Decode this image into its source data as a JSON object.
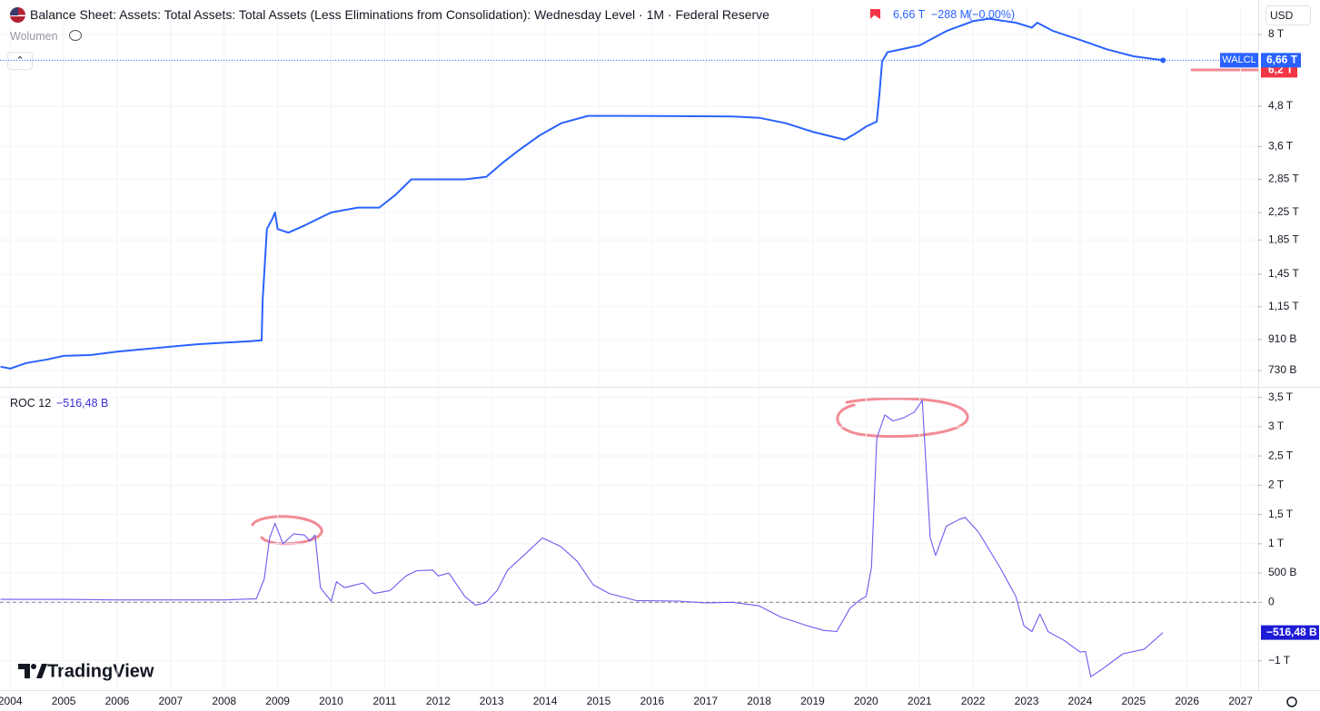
{
  "header": {
    "currency": "USD",
    "brand": "TradingView"
  },
  "chart_data": [
    {
      "type": "line",
      "title": "Balance Sheet: Assets: Total Assets: Total Assets (Less Eliminations from Consolidation): Wednesday Level · 1M · Federal Reserve",
      "volume_label": "Wolumen",
      "change": {
        "value": -0.288,
        "label": "−288 M"
      },
      "change_pct": {
        "value": 0,
        "label": "(−0,00%)"
      },
      "last_price": {
        "value": 6660,
        "label": "6,66 T"
      },
      "marker_price": {
        "value": 6200,
        "label": "6,2 T",
        "color": "#f23645"
      },
      "log_scale": true,
      "grid": true,
      "xlim": [
        2003.81,
        2027.33
      ],
      "ylim": [
        654,
        9713
      ],
      "yticks": [
        {
          "value": 8000,
          "label": "8 T"
        },
        {
          "value": 4800,
          "label": "4,8 T"
        },
        {
          "value": 3600,
          "label": "3,6 T"
        },
        {
          "value": 2850,
          "label": "2,85 T"
        },
        {
          "value": 2250,
          "label": "2,25 T"
        },
        {
          "value": 1850,
          "label": "1,85 T"
        },
        {
          "value": 1450,
          "label": "1,45 T"
        },
        {
          "value": 1150,
          "label": "1,15 T"
        },
        {
          "value": 910,
          "label": "910 B"
        },
        {
          "value": 730,
          "label": "730 B"
        }
      ],
      "x": [
        2003.82,
        2004.0,
        2004.3,
        2004.7,
        2005.0,
        2005.5,
        2006.0,
        2006.5,
        2007.0,
        2007.5,
        2008.0,
        2008.5,
        2008.7,
        2008.72,
        2008.8,
        2008.9,
        2008.95,
        2009.0,
        2009.2,
        2009.5,
        2009.75,
        2010.0,
        2010.5,
        2010.9,
        2011.2,
        2011.5,
        2011.9,
        2012.5,
        2012.9,
        2013.2,
        2013.5,
        2013.9,
        2014.3,
        2014.8,
        2015.5,
        2016.5,
        2017.5,
        2018.0,
        2018.5,
        2019.0,
        2019.6,
        2019.8,
        2020.0,
        2020.2,
        2020.25,
        2020.3,
        2020.4,
        2021.0,
        2021.5,
        2022.0,
        2022.3,
        2022.8,
        2023.1,
        2023.2,
        2023.5,
        2024.0,
        2024.5,
        2025.0,
        2025.55
      ],
      "series": [
        {
          "name": "WALCL",
          "color": "#2962ff",
          "values": [
            750,
            740,
            770,
            790,
            810,
            815,
            835,
            850,
            865,
            880,
            890,
            900,
            905,
            1200,
            2000,
            2150,
            2250,
            2000,
            1950,
            2050,
            2150,
            2250,
            2330,
            2330,
            2550,
            2850,
            2850,
            2850,
            2900,
            3200,
            3500,
            3900,
            4250,
            4480,
            4480,
            4470,
            4460,
            4420,
            4250,
            4000,
            3780,
            3950,
            4150,
            4300,
            5250,
            6600,
            7050,
            7400,
            8200,
            8800,
            8950,
            8700,
            8400,
            8700,
            8200,
            7700,
            7200,
            6850,
            6660
          ]
        }
      ]
    },
    {
      "type": "line",
      "last_price": {
        "value": -516.48,
        "label": "−516,48 B"
      },
      "log_scale": false,
      "grid": true,
      "xlim": [
        2003.81,
        2027.33
      ],
      "xticks": [
        2004,
        2005,
        2006,
        2007,
        2008,
        2009,
        2010,
        2011,
        2012,
        2013,
        2014,
        2015,
        2016,
        2017,
        2018,
        2019,
        2020,
        2021,
        2022,
        2023,
        2024,
        2025,
        2026,
        2027
      ],
      "ylim": [
        -1500,
        3650
      ],
      "yticks": [
        {
          "value": 3500,
          "label": "3,5 T"
        },
        {
          "value": 3000,
          "label": "3 T"
        },
        {
          "value": 2500,
          "label": "2,5 T"
        },
        {
          "value": 2000,
          "label": "2 T"
        },
        {
          "value": 1500,
          "label": "1,5 T"
        },
        {
          "value": 1000,
          "label": "1 T"
        },
        {
          "value": 500,
          "label": "500 B"
        },
        0,
        {
          "value": -1000,
          "label": "−1 T"
        }
      ],
      "x": [
        2003.82,
        2005,
        2006,
        2007,
        2008,
        2008.6,
        2008.75,
        2008.85,
        2008.95,
        2009.1,
        2009.3,
        2009.5,
        2009.6,
        2009.7,
        2009.8,
        2010.0,
        2010.1,
        2010.25,
        2010.6,
        2010.8,
        2011.1,
        2011.4,
        2011.6,
        2011.9,
        2012.0,
        2012.2,
        2012.5,
        2012.7,
        2012.9,
        2013.1,
        2013.3,
        2013.6,
        2013.95,
        2014.3,
        2014.6,
        2014.9,
        2015.2,
        2015.7,
        2016.5,
        2017.0,
        2017.5,
        2018.0,
        2018.4,
        2018.9,
        2019.2,
        2019.45,
        2019.7,
        2019.9,
        2020.0,
        2020.1,
        2020.2,
        2020.35,
        2020.5,
        2020.7,
        2020.9,
        2021.05,
        2021.2,
        2021.3,
        2021.5,
        2021.75,
        2021.85,
        2022.1,
        2022.5,
        2022.8,
        2022.95,
        2023.1,
        2023.25,
        2023.4,
        2023.7,
        2024.0,
        2024.1,
        2024.2,
        2024.4,
        2024.8,
        2025.2,
        2025.55
      ],
      "series": [
        {
          "name": "ROC 12",
          "color": "#6a5cf0",
          "values": [
            50,
            50,
            40,
            40,
            40,
            60,
            400,
            1100,
            1350,
            1000,
            1170,
            1150,
            1050,
            1150,
            250,
            20,
            350,
            250,
            330,
            150,
            200,
            450,
            540,
            550,
            450,
            500,
            100,
            -50,
            0,
            200,
            550,
            800,
            1100,
            950,
            700,
            300,
            150,
            30,
            20,
            -10,
            0,
            -60,
            -250,
            -400,
            -480,
            -500,
            -100,
            50,
            100,
            600,
            2800,
            3200,
            3100,
            3150,
            3250,
            3450,
            1100,
            800,
            1300,
            1420,
            1450,
            1200,
            600,
            100,
            -400,
            -500,
            -200,
            -500,
            -650,
            -850,
            -840,
            -1270,
            -1150,
            -880,
            -800,
            -516.48
          ]
        }
      ]
    }
  ]
}
